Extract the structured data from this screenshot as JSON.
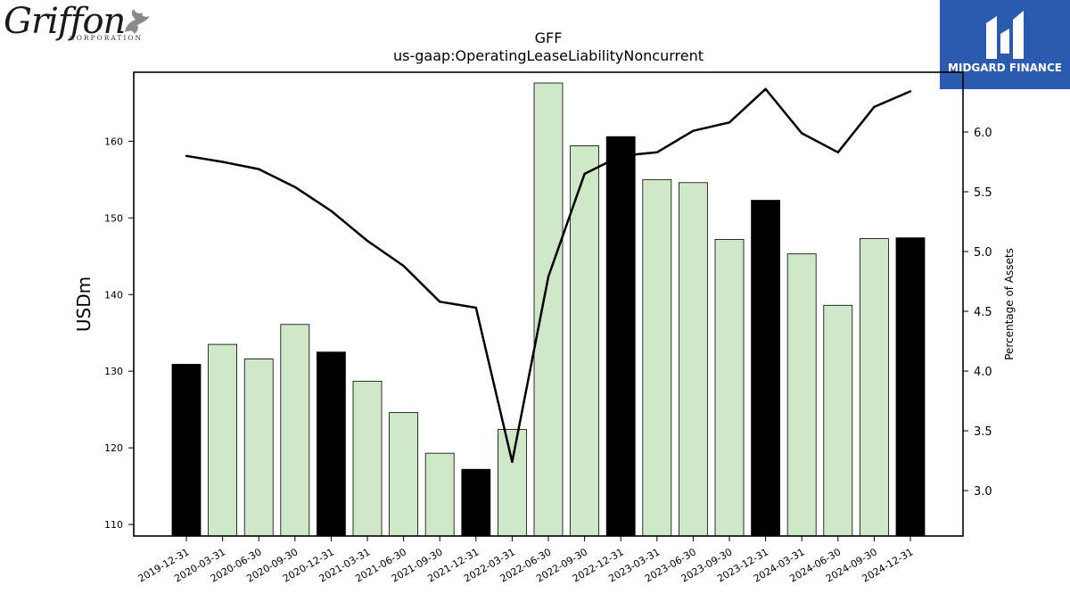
{
  "logos": {
    "left": {
      "word": "Griffon",
      "sub": "CORPORATION"
    },
    "right": {
      "text": "MIDGARD FINANCE"
    }
  },
  "colors": {
    "bar_default": "#cfe9c8",
    "bar_highlight": "#000000",
    "line": "#000000"
  },
  "chart_data": {
    "type": "bar",
    "title": "GFF",
    "subtitle": "us-gaap:OperatingLeaseLiabilityNoncurrent",
    "ylabel": "USDm",
    "y2label": "Percentage of Assets",
    "categories": [
      "2019-12-31",
      "2020-03-31",
      "2020-06-30",
      "2020-09-30",
      "2020-12-31",
      "2021-03-31",
      "2021-06-30",
      "2021-09-30",
      "2021-12-31",
      "2022-03-31",
      "2022-06-30",
      "2022-09-30",
      "2022-12-31",
      "2023-03-31",
      "2023-06-30",
      "2023-09-30",
      "2023-12-31",
      "2024-03-31",
      "2024-06-30",
      "2024-09-30",
      "2024-12-31"
    ],
    "series": [
      {
        "type": "bar",
        "axis": "left",
        "values": [
          130.9,
          133.5,
          131.6,
          136.1,
          132.5,
          128.7,
          124.6,
          119.3,
          117.2,
          122.4,
          167.6,
          159.4,
          160.6,
          155.0,
          154.6,
          147.2,
          152.3,
          145.3,
          138.6,
          147.3,
          147.4
        ],
        "highlighted": [
          true,
          false,
          false,
          false,
          true,
          false,
          false,
          false,
          true,
          false,
          false,
          false,
          true,
          false,
          false,
          false,
          true,
          false,
          false,
          false,
          true
        ]
      },
      {
        "type": "line",
        "axis": "right",
        "values": [
          5.8,
          5.75,
          5.69,
          5.54,
          5.34,
          5.09,
          4.88,
          4.58,
          4.53,
          3.24,
          4.79,
          5.65,
          5.8,
          5.83,
          6.01,
          6.08,
          6.36,
          5.99,
          5.83,
          6.21,
          6.34
        ]
      }
    ],
    "ylim": [
      108.5,
      169.0
    ],
    "yticks": [
      110,
      120,
      130,
      140,
      150,
      160
    ],
    "y2lim": [
      2.62,
      6.5
    ],
    "y2ticks": [
      3.0,
      3.5,
      4.0,
      4.5,
      5.0,
      5.5,
      6.0
    ],
    "grid": false,
    "legend": "none"
  }
}
